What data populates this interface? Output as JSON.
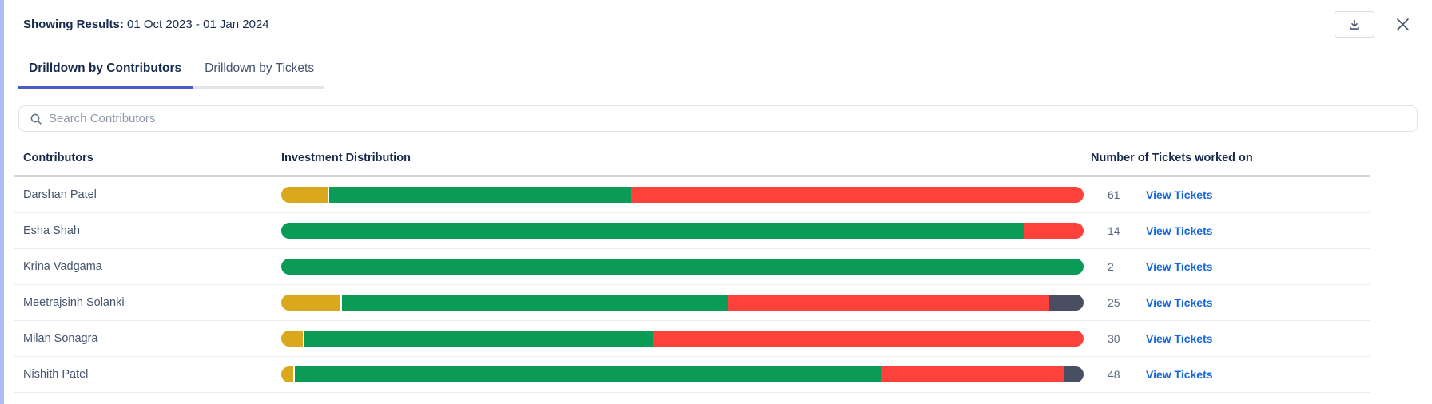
{
  "header": {
    "results_label": "Showing Results:",
    "date_range": "01 Oct 2023 - 01 Jan 2024"
  },
  "tabs": [
    {
      "label": "Drilldown by Contributors",
      "active": true
    },
    {
      "label": "Drilldown by Tickets",
      "active": false
    }
  ],
  "search": {
    "placeholder": "Search Contributors"
  },
  "table": {
    "columns": [
      "Contributors",
      "Investment Distribution",
      "Number of Tickets worked on"
    ],
    "link_label": "View Tickets",
    "rows": [
      {
        "name": "Darshan Patel",
        "tickets": "61",
        "segments": [
          {
            "color": "yellow",
            "pct": 6.0
          },
          {
            "color": "green",
            "pct": 37.6
          },
          {
            "color": "red",
            "pct": 56.4
          }
        ]
      },
      {
        "name": "Esha Shah",
        "tickets": "14",
        "segments": [
          {
            "color": "green",
            "pct": 92.6
          },
          {
            "color": "red",
            "pct": 7.4
          }
        ]
      },
      {
        "name": "Krina Vadgama",
        "tickets": "2",
        "segments": [
          {
            "color": "green",
            "pct": 100
          }
        ]
      },
      {
        "name": "Meetrajsinh Solanki",
        "tickets": "25",
        "segments": [
          {
            "color": "yellow",
            "pct": 7.6
          },
          {
            "color": "green",
            "pct": 48.1
          },
          {
            "color": "red",
            "pct": 40.0
          },
          {
            "color": "dark",
            "pct": 4.3
          }
        ]
      },
      {
        "name": "Milan Sonagra",
        "tickets": "30",
        "segments": [
          {
            "color": "yellow",
            "pct": 2.9
          },
          {
            "color": "green",
            "pct": 43.4
          },
          {
            "color": "red",
            "pct": 53.7
          }
        ]
      },
      {
        "name": "Nishith Patel",
        "tickets": "48",
        "segments": [
          {
            "color": "yellow",
            "pct": 1.7
          },
          {
            "color": "green",
            "pct": 73.0
          },
          {
            "color": "red",
            "pct": 22.8
          },
          {
            "color": "dark",
            "pct": 2.5
          }
        ]
      }
    ]
  },
  "colors": {
    "yellow": "#D9A81C",
    "green": "#0A9B57",
    "red": "#FC423A",
    "dark": "#4A4E63",
    "tab_accent": "#4a5ecb",
    "link": "#1868DB",
    "left_border": "#adbcf2"
  }
}
